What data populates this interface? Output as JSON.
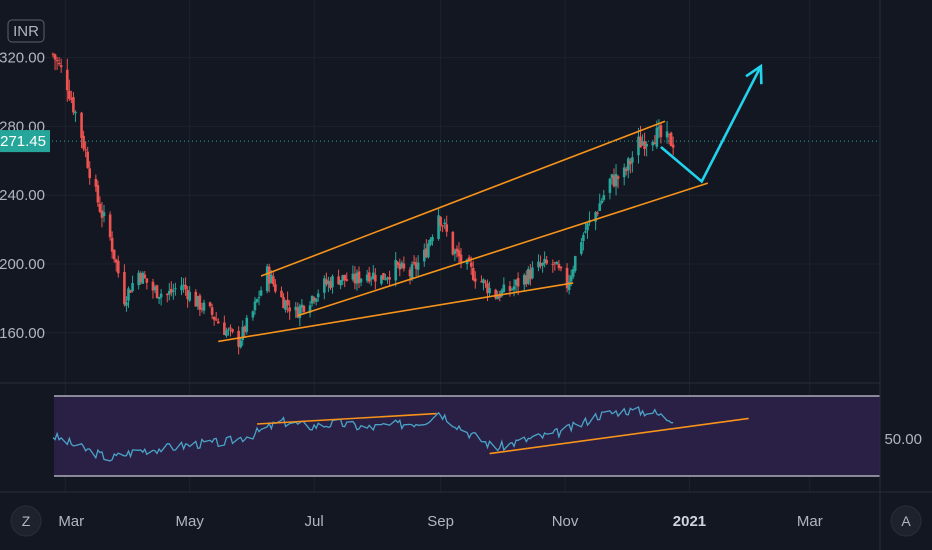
{
  "chart_data": [
    {
      "type": "candlestick",
      "currency": "INR",
      "yticks": [
        160,
        200,
        240,
        320
      ],
      "ytick_labels": [
        "160.00",
        "200.00",
        "240.00",
        "320.00"
      ],
      "last_price": 271.45,
      "last_price_label": "271.45",
      "partially_hidden_tick_label": "280.00",
      "x_ticks": [
        "Mar",
        "May",
        "Jul",
        "Sep",
        "Nov",
        "2021",
        "Mar"
      ],
      "colors": {
        "up": "#26a69a",
        "down": "#ef5350",
        "trendline": "#f7931a",
        "projection": "#22d3ee",
        "last_price": "#26a69a"
      },
      "trendlines": [
        {
          "name": "upper-channel",
          "points": [
            [
              "2020-06-05",
              193
            ],
            [
              "2020-12-20",
              283
            ]
          ]
        },
        {
          "name": "middle-channel",
          "points": [
            [
              "2020-06-23",
              170
            ],
            [
              "2021-01-10",
              247
            ]
          ]
        },
        {
          "name": "lower-channel",
          "points": [
            [
              "2020-05-15",
              155
            ],
            [
              "2020-11-05",
              189
            ]
          ]
        }
      ],
      "projection_path": [
        [
          "2020-12-18",
          268
        ],
        [
          "2021-01-07",
          248
        ],
        [
          "2021-02-05",
          315
        ]
      ],
      "weekly_close": [
        [
          "2020-02-24",
          322
        ],
        [
          "2020-03-02",
          305
        ],
        [
          "2020-03-09",
          275
        ],
        [
          "2020-03-16",
          240
        ],
        [
          "2020-03-23",
          215
        ],
        [
          "2020-03-30",
          180
        ],
        [
          "2020-04-06",
          195
        ],
        [
          "2020-04-13",
          185
        ],
        [
          "2020-04-20",
          182
        ],
        [
          "2020-04-27",
          188
        ],
        [
          "2020-05-04",
          178
        ],
        [
          "2020-05-11",
          172
        ],
        [
          "2020-05-18",
          162
        ],
        [
          "2020-05-25",
          155
        ],
        [
          "2020-06-01",
          172
        ],
        [
          "2020-06-08",
          195
        ],
        [
          "2020-06-15",
          180
        ],
        [
          "2020-06-22",
          172
        ],
        [
          "2020-06-29",
          180
        ],
        [
          "2020-07-06",
          188
        ],
        [
          "2020-07-13",
          192
        ],
        [
          "2020-07-20",
          190
        ],
        [
          "2020-07-27",
          195
        ],
        [
          "2020-08-03",
          192
        ],
        [
          "2020-08-10",
          198
        ],
        [
          "2020-08-17",
          194
        ],
        [
          "2020-08-24",
          205
        ],
        [
          "2020-08-31",
          230
        ],
        [
          "2020-09-07",
          208
        ],
        [
          "2020-09-14",
          198
        ],
        [
          "2020-09-21",
          190
        ],
        [
          "2020-09-28",
          182
        ],
        [
          "2020-10-05",
          185
        ],
        [
          "2020-10-12",
          192
        ],
        [
          "2020-10-19",
          198
        ],
        [
          "2020-10-26",
          200
        ],
        [
          "2020-11-02",
          188
        ],
        [
          "2020-11-09",
          215
        ],
        [
          "2020-11-16",
          230
        ],
        [
          "2020-11-23",
          248
        ],
        [
          "2020-11-30",
          252
        ],
        [
          "2020-12-07",
          270
        ],
        [
          "2020-12-14",
          276
        ],
        [
          "2020-12-21",
          271.45
        ]
      ]
    },
    {
      "type": "line",
      "indicator": "RSI",
      "ytick_labels": [
        "50.00"
      ],
      "colors": {
        "line": "#4aa3c7",
        "band": "#2a1f45",
        "band_border": "#c9c9d6",
        "trendline": "#f7931a"
      },
      "trendlines": [
        {
          "name": "rsi-top-line",
          "points": [
            [
              "2020-06-03",
              65
            ],
            [
              "2020-08-30",
              78
            ]
          ]
        },
        {
          "name": "rsi-lower-line",
          "points": [
            [
              "2020-09-25",
              28
            ],
            [
              "2021-01-30",
              72
            ]
          ]
        }
      ],
      "weekly_value": [
        [
          "2020-02-24",
          50
        ],
        [
          "2020-03-09",
          35
        ],
        [
          "2020-03-23",
          22
        ],
        [
          "2020-04-06",
          32
        ],
        [
          "2020-04-20",
          35
        ],
        [
          "2020-05-04",
          40
        ],
        [
          "2020-05-18",
          42
        ],
        [
          "2020-06-01",
          52
        ],
        [
          "2020-06-15",
          68
        ],
        [
          "2020-06-29",
          62
        ],
        [
          "2020-07-13",
          66
        ],
        [
          "2020-07-27",
          60
        ],
        [
          "2020-08-10",
          64
        ],
        [
          "2020-08-24",
          68
        ],
        [
          "2020-08-31",
          80
        ],
        [
          "2020-09-14",
          55
        ],
        [
          "2020-09-28",
          35
        ],
        [
          "2020-10-12",
          45
        ],
        [
          "2020-10-26",
          52
        ],
        [
          "2020-11-09",
          65
        ],
        [
          "2020-11-16",
          75
        ],
        [
          "2020-11-30",
          82
        ],
        [
          "2020-12-14",
          80
        ],
        [
          "2020-12-21",
          72
        ]
      ]
    }
  ],
  "ui": {
    "left_corner_button": "Z",
    "right_corner_button": "A"
  }
}
